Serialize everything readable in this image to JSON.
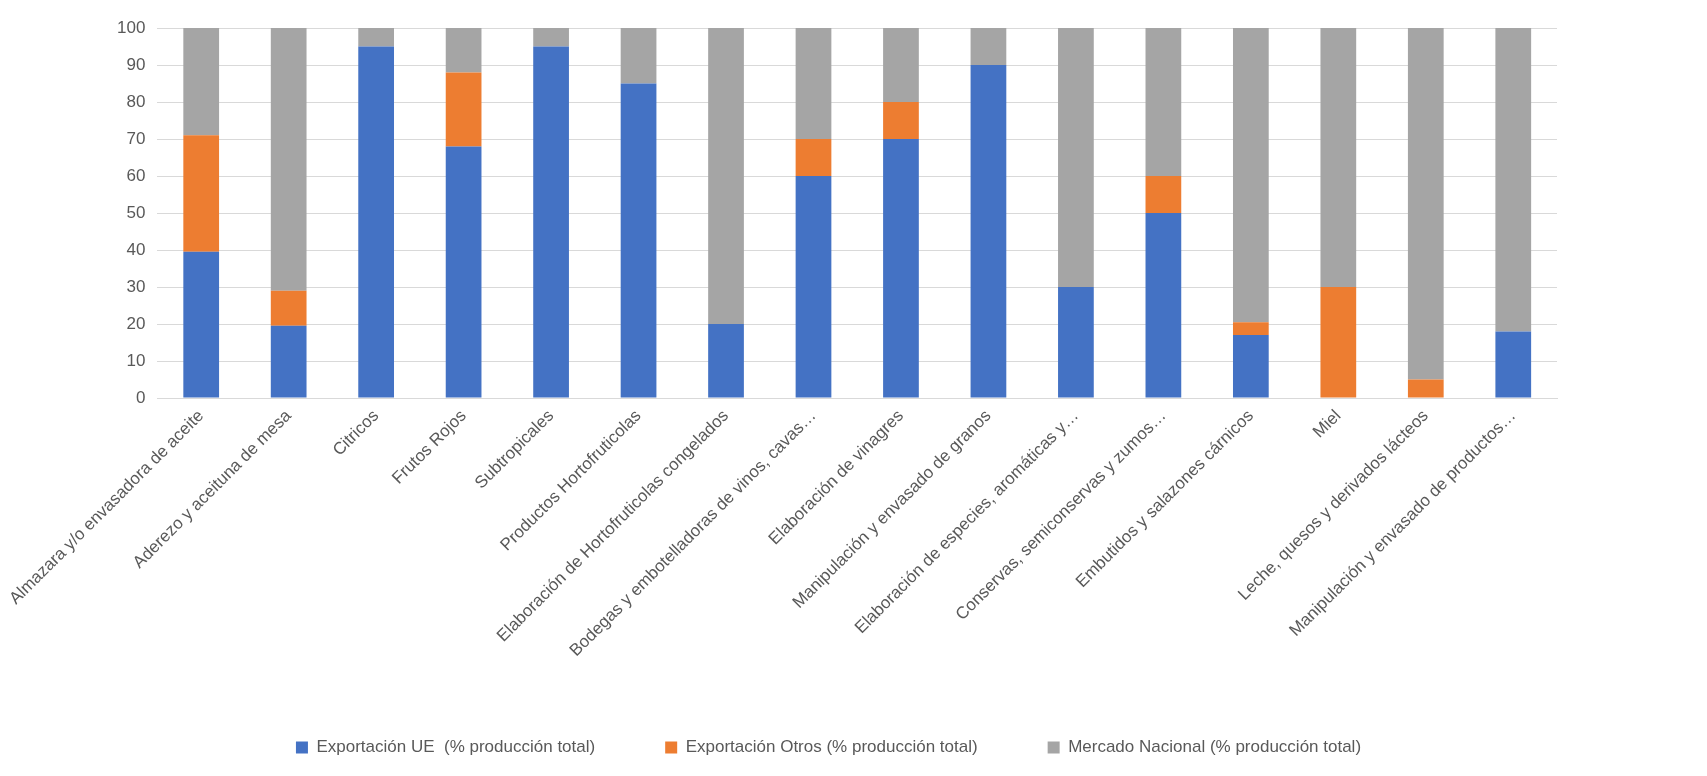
{
  "chart_data": {
    "type": "bar",
    "stacked": true,
    "categories": [
      "Almazara y/o envasadora de aceite",
      "Aderezo y aceituna de mesa",
      "Citricos",
      "Frutos Rojos",
      "Subtropicales",
      "Productos Hortofruticolas",
      "Elaboración de Hortofruticolas congelados",
      "Bodegas y embotelladoras de vinos, cavas…",
      "Elaboración de vinagres",
      "Manipulación y envasado de granos",
      "Elaboración de especies, aromáticas y…",
      "Conservas, semiconservas y zumos…",
      "Embutidos y salazones cárnicos",
      "Miel",
      "Leche, quesos y derivados lácteos",
      "Manipulación y envasado de productos…"
    ],
    "series": [
      {
        "name": "Exportación UE  (% producción total)",
        "color": "#4472c4",
        "values": [
          39.5,
          19.5,
          95,
          68,
          95,
          85,
          20,
          60,
          70,
          90,
          30,
          50,
          17,
          0,
          0,
          18
        ]
      },
      {
        "name": "Exportación Otros (% producción total)",
        "color": "#ed7d31",
        "values": [
          31.5,
          9.5,
          0,
          20,
          0,
          0,
          0,
          10,
          10,
          0,
          0,
          10,
          3.5,
          30,
          5,
          0
        ]
      },
      {
        "name": "Mercado Nacional (% producción total)",
        "color": "#a5a5a5",
        "values": [
          29,
          71,
          5,
          12,
          5,
          15,
          80,
          30,
          20,
          10,
          70,
          40,
          79.5,
          70,
          95,
          82
        ]
      }
    ],
    "ylim": [
      0,
      100
    ],
    "yticks": [
      0,
      10,
      20,
      30,
      40,
      50,
      60,
      70,
      80,
      90,
      100
    ],
    "grid": "y",
    "legend": "bottom"
  }
}
